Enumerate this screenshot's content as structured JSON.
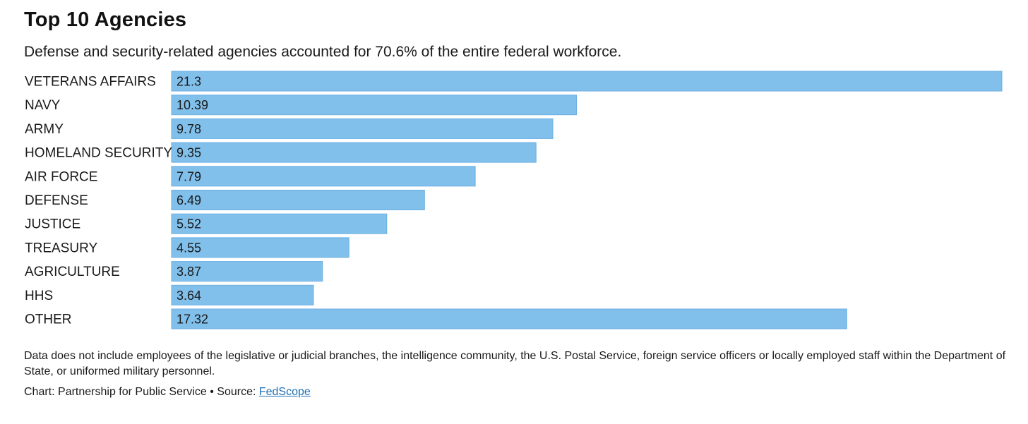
{
  "chart_data": {
    "type": "bar",
    "orientation": "horizontal",
    "title": "Top 10 Agencies",
    "subtitle": "Defense and security-related agencies accounted for 70.6% of the entire federal workforce.",
    "categories": [
      "VETERANS AFFAIRS",
      "NAVY",
      "ARMY",
      "HOMELAND SECURITY",
      "AIR FORCE",
      "DEFENSE",
      "JUSTICE",
      "TREASURY",
      "AGRICULTURE",
      "HHS",
      "OTHER"
    ],
    "values": [
      21.3,
      10.39,
      9.78,
      9.35,
      7.79,
      6.49,
      5.52,
      4.55,
      3.87,
      3.64,
      17.32
    ],
    "value_labels": [
      "21.3",
      "10.39",
      "9.78",
      "9.35",
      "7.79",
      "6.49",
      "5.52",
      "4.55",
      "3.87",
      "3.64",
      "17.32"
    ],
    "xlim": [
      0,
      21.3
    ],
    "xlabel": "",
    "ylabel": "",
    "grid": false,
    "bar_color": "#82c0ec",
    "bar_border_color": "#6aaee0"
  },
  "footnote": "Data does not include employees of the legislative or judicial branches, the intelligence community, the U.S. Postal Service, foreign service officers or locally employed staff within the Department of State, or uniformed military personnel.",
  "credit": {
    "prefix": "Chart: Partnership for Public Service • Source: ",
    "source_link": "FedScope"
  }
}
